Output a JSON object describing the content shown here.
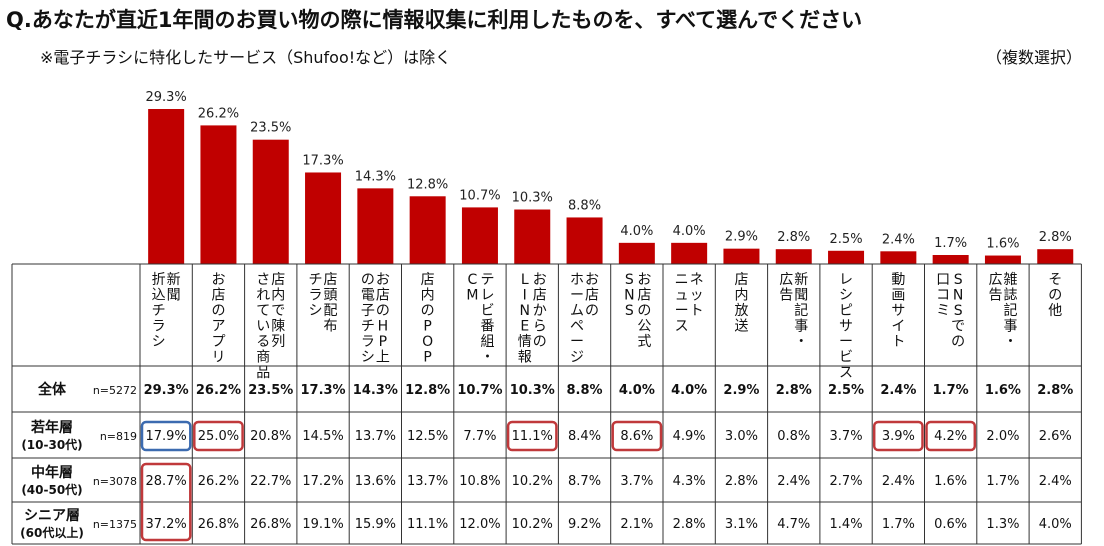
{
  "header": {
    "title": "Q.あなたが直近1年間のお買い物の際に情報収集に利用したものを、すべて選んでください",
    "subtitle": "※電子チラシに特化したサービス（Shufoo!など）は除く",
    "multi_select": "（複数選択）"
  },
  "chart_data": {
    "type": "bar",
    "title": "Q.あなたが直近1年間のお買い物の際に情報収集に利用したものを、すべて選んでください",
    "categories": [
      [
        "新聞",
        "折込チラシ"
      ],
      [
        "お店のアプリ"
      ],
      [
        "店内で陳列",
        "されている商品"
      ],
      [
        "店頭配布",
        "チラシ"
      ],
      [
        "お店のHP上",
        "の電子チラシ"
      ],
      [
        "店内のPOP"
      ],
      [
        "テレビ番組・",
        "CM"
      ],
      [
        "お店からの",
        "LINE情報"
      ],
      [
        "お店の",
        "ホームページ"
      ],
      [
        "お店の公式",
        "SNS"
      ],
      [
        "ネット",
        "ニュース"
      ],
      [
        "店内放送"
      ],
      [
        "新聞記事・",
        "広告"
      ],
      [
        "レシピサービス"
      ],
      [
        "動画サイト"
      ],
      [
        "SNSでの",
        "口コミ"
      ],
      [
        "雑誌記事・",
        "広告"
      ],
      [
        "その他"
      ]
    ],
    "values": [
      29.3,
      26.2,
      23.5,
      17.3,
      14.3,
      12.8,
      10.7,
      10.3,
      8.8,
      4.0,
      4.0,
      2.9,
      2.8,
      2.5,
      2.4,
      1.7,
      1.6,
      2.8
    ],
    "value_labels": [
      "29.3%",
      "26.2%",
      "23.5%",
      "17.3%",
      "14.3%",
      "12.8%",
      "10.7%",
      "10.3%",
      "8.8%",
      "4.0%",
      "4.0%",
      "2.9%",
      "2.8%",
      "2.5%",
      "2.4%",
      "1.7%",
      "1.6%",
      "2.8%"
    ],
    "ylim": [
      0,
      30
    ],
    "table": {
      "rows": [
        {
          "label": "全体",
          "sublabel": "",
          "n": "n=5272",
          "bold": true,
          "values": [
            "29.3%",
            "26.2%",
            "23.5%",
            "17.3%",
            "14.3%",
            "12.8%",
            "10.7%",
            "10.3%",
            "8.8%",
            "4.0%",
            "4.0%",
            "2.9%",
            "2.8%",
            "2.5%",
            "2.4%",
            "1.7%",
            "1.6%",
            "2.8%"
          ],
          "highlights": []
        },
        {
          "label": "若年層",
          "sublabel": "(10-30代)",
          "n": "n=819",
          "bold": false,
          "values": [
            "17.9%",
            "25.0%",
            "20.8%",
            "14.5%",
            "13.7%",
            "12.5%",
            "7.7%",
            "11.1%",
            "8.4%",
            "8.6%",
            "4.9%",
            "3.0%",
            "0.8%",
            "3.7%",
            "3.9%",
            "4.2%",
            "2.0%",
            "2.6%"
          ],
          "highlights": [
            {
              "col": 0,
              "color": "blue"
            },
            {
              "col": 1,
              "color": "red"
            },
            {
              "col": 7,
              "color": "red"
            },
            {
              "col": 9,
              "color": "red"
            },
            {
              "col": 14,
              "color": "red"
            },
            {
              "col": 15,
              "color": "red"
            }
          ]
        },
        {
          "label": "中年層",
          "sublabel": "(40-50代)",
          "n": "n=3078",
          "bold": false,
          "values": [
            "28.7%",
            "26.2%",
            "22.7%",
            "17.2%",
            "13.6%",
            "13.7%",
            "10.8%",
            "10.2%",
            "8.7%",
            "3.7%",
            "4.3%",
            "2.8%",
            "2.4%",
            "2.7%",
            "2.4%",
            "1.6%",
            "1.7%",
            "2.4%"
          ],
          "highlights": []
        },
        {
          "label": "シニア層",
          "sublabel": "(60代以上)",
          "n": "n=1375",
          "bold": false,
          "values": [
            "37.2%",
            "26.8%",
            "26.8%",
            "19.1%",
            "15.9%",
            "11.1%",
            "12.0%",
            "10.2%",
            "9.2%",
            "2.1%",
            "2.8%",
            "3.1%",
            "4.7%",
            "1.4%",
            "1.7%",
            "0.6%",
            "1.3%",
            "4.0%"
          ],
          "highlights": []
        }
      ],
      "span_highlights": [
        {
          "col": 0,
          "from_row": 2,
          "to_row": 3,
          "color": "red"
        }
      ]
    }
  }
}
